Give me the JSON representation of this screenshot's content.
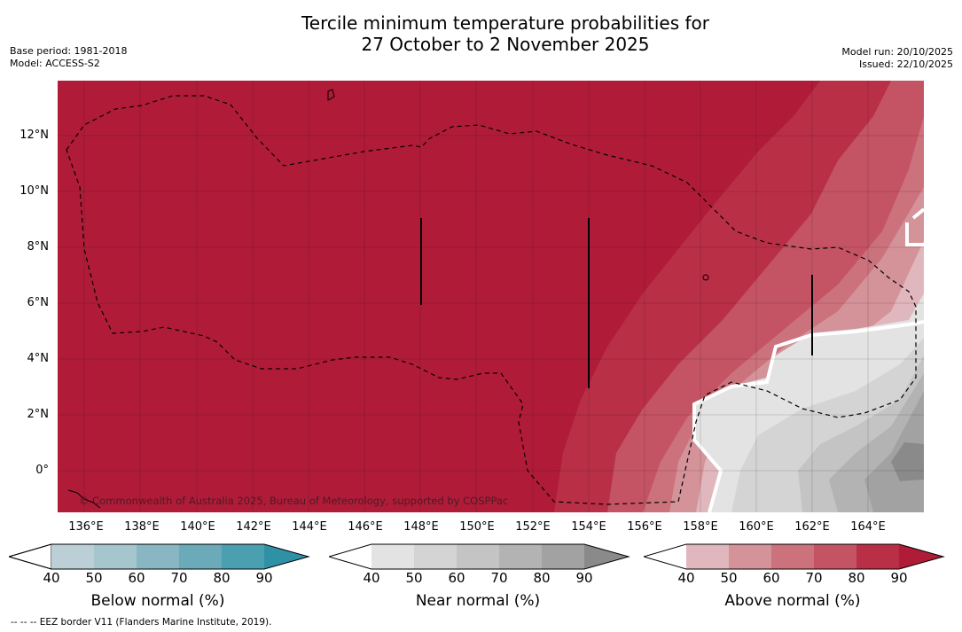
{
  "title_line1": "Tercile minimum temperature probabilities for",
  "title_line2": "27 October to 2 November 2025",
  "meta_left": {
    "base_period": "Base period: 1981-2018",
    "model": "Model: ACCESS-S2"
  },
  "meta_right": {
    "model_run": "Model run: 20/10/2025",
    "issued": "Issued: 22/10/2025"
  },
  "x_axis_labels": [
    "136°E",
    "138°E",
    "140°E",
    "142°E",
    "144°E",
    "146°E",
    "148°E",
    "150°E",
    "152°E",
    "154°E",
    "156°E",
    "158°E",
    "160°E",
    "162°E",
    "164°E"
  ],
  "y_axis_labels": [
    "12°N",
    "10°N",
    "8°N",
    "6°N",
    "4°N",
    "2°N",
    "0°"
  ],
  "copyright": "© Commonwealth of Australia 2025, Bureau of Meteorology, supported by COSPPac",
  "colorbars": [
    {
      "title": "Below normal (%)",
      "ticks": [
        "40",
        "50",
        "60",
        "70",
        "80",
        "90"
      ],
      "colors": [
        "#bccfd6",
        "#a5c6cd",
        "#88b7c3",
        "#6aaab9",
        "#4aa0b1",
        "#2f91a6"
      ]
    },
    {
      "title": "Near normal (%)",
      "ticks": [
        "40",
        "50",
        "60",
        "70",
        "80",
        "90"
      ],
      "colors": [
        "#e3e3e3",
        "#d4d4d4",
        "#c4c4c4",
        "#b3b3b3",
        "#a2a2a2",
        "#8a8a8a"
      ]
    },
    {
      "title": "Above normal (%)",
      "ticks": [
        "40",
        "50",
        "60",
        "70",
        "80",
        "90"
      ],
      "colors": [
        "#e0b7bd",
        "#d49299",
        "#cb727d",
        "#c45463",
        "#b92f46",
        "#b01c38"
      ]
    }
  ],
  "footnote": "--  --  -- EEZ border V11 (Flanders Marine Institute, 2019)."
}
